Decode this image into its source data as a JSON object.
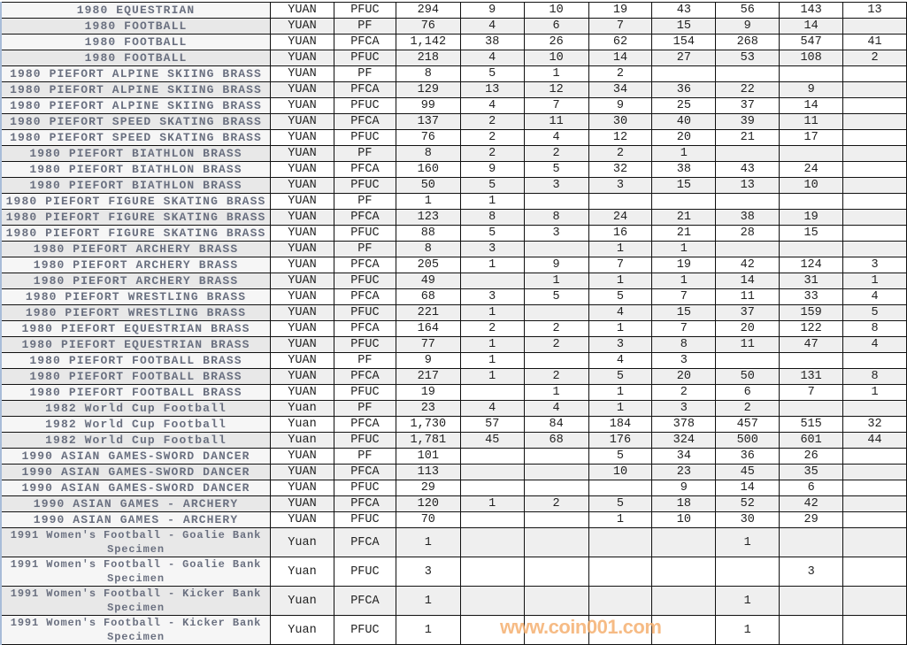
{
  "rows": [
    {
      "name": "1980 EQUESTRIAN",
      "unit": "YUAN",
      "grade": "PFUC",
      "total": "294",
      "counts": [
        "9",
        "10",
        "19",
        "43",
        "56",
        "143",
        "13"
      ]
    },
    {
      "name": "1980 FOOTBALL",
      "unit": "YUAN",
      "grade": "PF",
      "total": "76",
      "counts": [
        "4",
        "6",
        "7",
        "15",
        "9",
        "14",
        ""
      ]
    },
    {
      "name": "1980 FOOTBALL",
      "unit": "YUAN",
      "grade": "PFCA",
      "total": "1,142",
      "counts": [
        "38",
        "26",
        "62",
        "154",
        "268",
        "547",
        "41"
      ]
    },
    {
      "name": "1980 FOOTBALL",
      "unit": "YUAN",
      "grade": "PFUC",
      "total": "218",
      "counts": [
        "4",
        "10",
        "14",
        "27",
        "53",
        "108",
        "2"
      ]
    },
    {
      "name": "1980 PIEFORT ALPINE SKIING BRASS",
      "unit": "YUAN",
      "grade": "PF",
      "total": "8",
      "counts": [
        "5",
        "1",
        "2",
        "",
        "",
        "",
        ""
      ]
    },
    {
      "name": "1980 PIEFORT ALPINE SKIING BRASS",
      "unit": "YUAN",
      "grade": "PFCA",
      "total": "129",
      "counts": [
        "13",
        "12",
        "34",
        "36",
        "22",
        "9",
        ""
      ]
    },
    {
      "name": "1980 PIEFORT ALPINE SKIING BRASS",
      "unit": "YUAN",
      "grade": "PFUC",
      "total": "99",
      "counts": [
        "4",
        "7",
        "9",
        "25",
        "37",
        "14",
        ""
      ]
    },
    {
      "name": "1980 PIEFORT SPEED SKATING BRASS",
      "unit": "YUAN",
      "grade": "PFCA",
      "total": "137",
      "counts": [
        "2",
        "11",
        "30",
        "40",
        "39",
        "11",
        ""
      ]
    },
    {
      "name": "1980 PIEFORT SPEED SKATING BRASS",
      "unit": "YUAN",
      "grade": "PFUC",
      "total": "76",
      "counts": [
        "2",
        "4",
        "12",
        "20",
        "21",
        "17",
        ""
      ]
    },
    {
      "name": "1980 PIEFORT BIATHLON BRASS",
      "unit": "YUAN",
      "grade": "PF",
      "total": "8",
      "counts": [
        "2",
        "2",
        "2",
        "1",
        "",
        "",
        ""
      ]
    },
    {
      "name": "1980 PIEFORT BIATHLON BRASS",
      "unit": "YUAN",
      "grade": "PFCA",
      "total": "160",
      "counts": [
        "9",
        "5",
        "32",
        "38",
        "43",
        "24",
        ""
      ]
    },
    {
      "name": "1980 PIEFORT BIATHLON BRASS",
      "unit": "YUAN",
      "grade": "PFUC",
      "total": "50",
      "counts": [
        "5",
        "3",
        "3",
        "15",
        "13",
        "10",
        ""
      ]
    },
    {
      "name": "1980 PIEFORT FIGURE SKATING BRASS",
      "unit": "YUAN",
      "grade": "PF",
      "total": "1",
      "counts": [
        "1",
        "",
        "",
        "",
        "",
        "",
        ""
      ]
    },
    {
      "name": "1980 PIEFORT FIGURE SKATING BRASS",
      "unit": "YUAN",
      "grade": "PFCA",
      "total": "123",
      "counts": [
        "8",
        "8",
        "24",
        "21",
        "38",
        "19",
        ""
      ]
    },
    {
      "name": "1980 PIEFORT FIGURE SKATING BRASS",
      "unit": "YUAN",
      "grade": "PFUC",
      "total": "88",
      "counts": [
        "5",
        "3",
        "16",
        "21",
        "28",
        "15",
        ""
      ]
    },
    {
      "name": "1980 PIEFORT ARCHERY BRASS",
      "unit": "YUAN",
      "grade": "PF",
      "total": "8",
      "counts": [
        "3",
        "",
        "1",
        "1",
        "",
        "",
        ""
      ]
    },
    {
      "name": "1980 PIEFORT ARCHERY BRASS",
      "unit": "YUAN",
      "grade": "PFCA",
      "total": "205",
      "counts": [
        "1",
        "9",
        "7",
        "19",
        "42",
        "124",
        "3"
      ]
    },
    {
      "name": "1980 PIEFORT ARCHERY BRASS",
      "unit": "YUAN",
      "grade": "PFUC",
      "total": "49",
      "counts": [
        "",
        "1",
        "1",
        "1",
        "14",
        "31",
        "1"
      ]
    },
    {
      "name": "1980 PIEFORT WRESTLING BRASS",
      "unit": "YUAN",
      "grade": "PFCA",
      "total": "68",
      "counts": [
        "3",
        "5",
        "5",
        "7",
        "11",
        "33",
        "4"
      ]
    },
    {
      "name": "1980 PIEFORT WRESTLING BRASS",
      "unit": "YUAN",
      "grade": "PFUC",
      "total": "221",
      "counts": [
        "1",
        "",
        "4",
        "15",
        "37",
        "159",
        "5"
      ]
    },
    {
      "name": "1980 PIEFORT EQUESTRIAN BRASS",
      "unit": "YUAN",
      "grade": "PFCA",
      "total": "164",
      "counts": [
        "2",
        "2",
        "1",
        "7",
        "20",
        "122",
        "8"
      ]
    },
    {
      "name": "1980 PIEFORT EQUESTRIAN BRASS",
      "unit": "YUAN",
      "grade": "PFUC",
      "total": "77",
      "counts": [
        "1",
        "2",
        "3",
        "8",
        "11",
        "47",
        "4"
      ]
    },
    {
      "name": "1980 PIEFORT FOOTBALL BRASS",
      "unit": "YUAN",
      "grade": "PF",
      "total": "9",
      "counts": [
        "1",
        "",
        "4",
        "3",
        "",
        "",
        ""
      ]
    },
    {
      "name": "1980 PIEFORT FOOTBALL BRASS",
      "unit": "YUAN",
      "grade": "PFCA",
      "total": "217",
      "counts": [
        "1",
        "2",
        "5",
        "20",
        "50",
        "131",
        "8"
      ]
    },
    {
      "name": "1980 PIEFORT FOOTBALL BRASS",
      "unit": "YUAN",
      "grade": "PFUC",
      "total": "19",
      "counts": [
        "",
        "1",
        "1",
        "2",
        "6",
        "7",
        "1"
      ]
    },
    {
      "name": "1982 World Cup Football",
      "unit": "Yuan",
      "grade": "PF",
      "total": "23",
      "counts": [
        "4",
        "4",
        "1",
        "3",
        "2",
        "",
        ""
      ]
    },
    {
      "name": "1982 World Cup Football",
      "unit": "Yuan",
      "grade": "PFCA",
      "total": "1,730",
      "counts": [
        "57",
        "84",
        "184",
        "378",
        "457",
        "515",
        "32"
      ]
    },
    {
      "name": "1982 World Cup Football",
      "unit": "Yuan",
      "grade": "PFUC",
      "total": "1,781",
      "counts": [
        "45",
        "68",
        "176",
        "324",
        "500",
        "601",
        "44"
      ]
    },
    {
      "name": "1990 ASIAN GAMES-SWORD DANCER",
      "unit": "YUAN",
      "grade": "PF",
      "total": "101",
      "counts": [
        "",
        "",
        "5",
        "34",
        "36",
        "26",
        ""
      ]
    },
    {
      "name": "1990 ASIAN GAMES-SWORD DANCER",
      "unit": "YUAN",
      "grade": "PFCA",
      "total": "113",
      "counts": [
        "",
        "",
        "10",
        "23",
        "45",
        "35",
        ""
      ]
    },
    {
      "name": "1990 ASIAN GAMES-SWORD DANCER",
      "unit": "YUAN",
      "grade": "PFUC",
      "total": "29",
      "counts": [
        "",
        "",
        "",
        "9",
        "14",
        "6",
        ""
      ]
    },
    {
      "name": "1990 ASIAN GAMES - ARCHERY",
      "unit": "YUAN",
      "grade": "PFCA",
      "total": "120",
      "counts": [
        "1",
        "2",
        "5",
        "18",
        "52",
        "42",
        ""
      ]
    },
    {
      "name": "1990 ASIAN GAMES - ARCHERY",
      "unit": "YUAN",
      "grade": "PFUC",
      "total": "70",
      "counts": [
        "",
        "",
        "1",
        "10",
        "30",
        "29",
        ""
      ]
    },
    {
      "name": "1991 Women's Football - Goalie Bank Specimen",
      "unit": "Yuan",
      "grade": "PFCA",
      "total": "1",
      "counts": [
        "",
        "",
        "",
        "",
        "1",
        "",
        ""
      ]
    },
    {
      "name": "1991 Women's Football - Goalie Bank Specimen",
      "unit": "Yuan",
      "grade": "PFUC",
      "total": "3",
      "counts": [
        "",
        "",
        "",
        "",
        "",
        "3",
        ""
      ]
    },
    {
      "name": "1991 Women's Football - Kicker Bank Specimen",
      "unit": "Yuan",
      "grade": "PFCA",
      "total": "1",
      "counts": [
        "",
        "",
        "",
        "",
        "1",
        "",
        ""
      ]
    },
    {
      "name": "1991 Women's Football - Kicker Bank Specimen",
      "unit": "Yuan",
      "grade": "PFUC",
      "total": "1",
      "counts": [
        "",
        "",
        "",
        "",
        "1",
        "",
        ""
      ]
    }
  ],
  "watermark": "www.coin001.com"
}
